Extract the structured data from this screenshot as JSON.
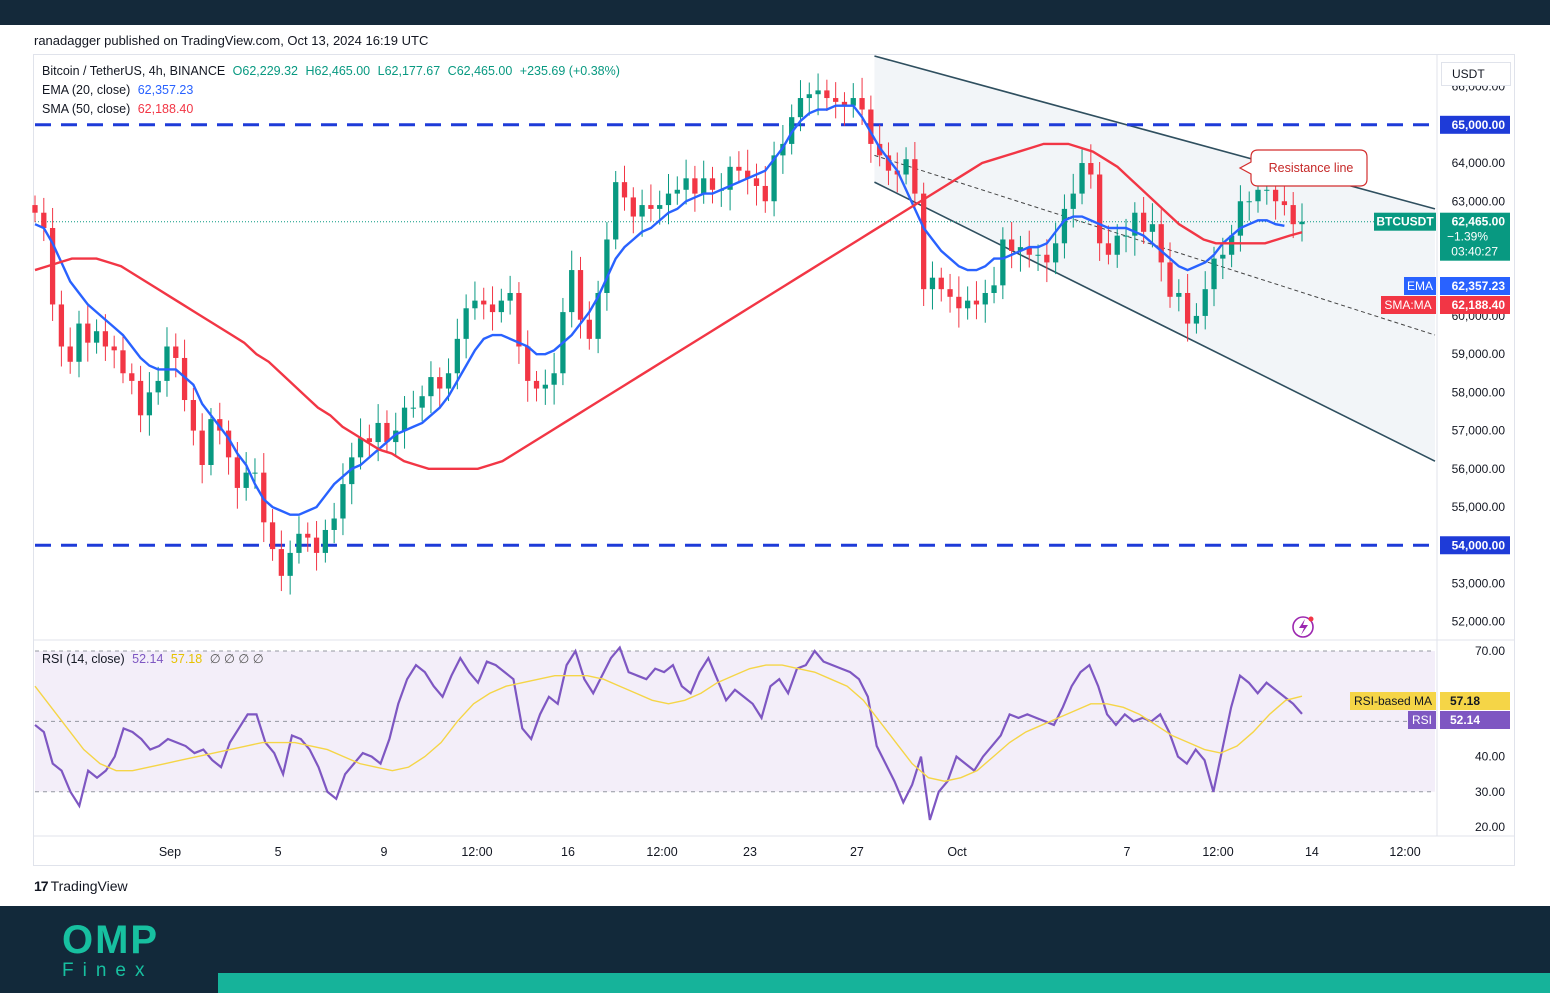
{
  "header": {
    "publisher_line": "ranadagger published on TradingView.com, Oct 13, 2024 16:19 UTC"
  },
  "legend": {
    "symbol": "Bitcoin / TetherUS, 4h, BINANCE",
    "open": "O62,229.32",
    "high": "H62,465.00",
    "low": "L62,177.67",
    "close": "C62,465.00",
    "change": "+235.69 (+0.38%)",
    "ema_label": "EMA (20, close)",
    "ema_value": "62,357.23",
    "sma_label": "SMA (50, close)",
    "sma_value": "62,188.40",
    "rsi_label": "RSI (14, close)",
    "rsi_value": "52.14",
    "rsi_ma_value": "57.18",
    "rsi_zeros": "∅ ∅ ∅ ∅"
  },
  "scale": {
    "currency": "USDT"
  },
  "colors": {
    "up": "#089981",
    "down": "#f23645",
    "ema": "#2962ff",
    "sma": "#f23645",
    "level": "#1e3bd8",
    "channel": "#2f4f5f",
    "rsi": "#7e57c2",
    "rsi_ma": "#f5d547",
    "rsi_band": "#f3eef9"
  },
  "chart_data": {
    "type": "candlestick",
    "symbol": "BTCUSDT",
    "timeframe": "4h",
    "exchange": "BINANCE",
    "x_tick_labels": [
      "Sep",
      "5",
      "9",
      "12:00",
      "16",
      "12:00",
      "23",
      "27",
      "Oct",
      "7",
      "12:00",
      "14",
      "12:00"
    ],
    "y_range": [
      51600,
      66800
    ],
    "y_tick_values": [
      66000,
      64000,
      63000,
      60000,
      59000,
      58000,
      57000,
      56000,
      55000,
      53000,
      52000
    ],
    "y_tick_labels": [
      "66,000.00",
      "64,000.00",
      "63,000.00",
      "60,000.00",
      "59,000.00",
      "58,000.00",
      "57,000.00",
      "56,000.00",
      "55,000.00",
      "53,000.00",
      "52,000.00"
    ],
    "horizontal_levels": [
      {
        "value": 65000,
        "label": "65,000.00"
      },
      {
        "value": 54000,
        "label": "54,000.00"
      }
    ],
    "last_price": {
      "symbol": "BTCUSDT",
      "value": 62465,
      "label": "62,465.00",
      "change": "−1.39%",
      "countdown": "03:40:27"
    },
    "ema": {
      "name": "EMA",
      "period": 20,
      "value": 62357.23,
      "label": "62,357.23"
    },
    "sma": {
      "name": "SMA:MA",
      "period": 50,
      "value": 62188.4,
      "label": "62,188.40"
    },
    "annotation": "Resistance line",
    "close_series": [
      62700,
      62300,
      60300,
      59200,
      58800,
      59800,
      59300,
      59600,
      59200,
      59100,
      58500,
      58300,
      57400,
      58000,
      58300,
      59200,
      58900,
      57800,
      57000,
      56100,
      57300,
      57000,
      56300,
      55500,
      55900,
      55900,
      54600,
      53900,
      53200,
      53800,
      54300,
      54200,
      53800,
      54400,
      54700,
      55600,
      56300,
      56800,
      56700,
      57200,
      56700,
      57000,
      57600,
      57600,
      57900,
      58400,
      58100,
      58500,
      59400,
      60200,
      60400,
      60300,
      60100,
      60400,
      60600,
      59200,
      58300,
      58100,
      58200,
      58500,
      60100,
      61200,
      59900,
      59400,
      60600,
      62000,
      63500,
      63100,
      62600,
      62900,
      62800,
      62900,
      63200,
      63300,
      63600,
      63200,
      63600,
      63300,
      63300,
      63900,
      63800,
      63600,
      63400,
      63000,
      64200,
      64500,
      65200,
      65700,
      65800,
      65900,
      65700,
      65600,
      65500,
      65700,
      65400,
      64500,
      64200,
      63800,
      63700,
      64100,
      63200,
      60700,
      61000,
      60700,
      60500,
      60200,
      60400,
      60300,
      60600,
      60800,
      62000,
      61700,
      61800,
      61600,
      61600,
      61400,
      61900,
      62800,
      63200,
      64000,
      63700,
      61900,
      61600,
      62100,
      62100,
      62700,
      62200,
      62400,
      61400,
      60500,
      60600,
      59800,
      60000,
      60700,
      61500,
      61600,
      62100,
      63000,
      63000,
      63300,
      63300,
      63000,
      62900,
      62400,
      62465
    ],
    "ema_series": [
      62400,
      62300,
      61900,
      61400,
      60900,
      60600,
      60300,
      60100,
      59900,
      59700,
      59500,
      59200,
      58900,
      58700,
      58600,
      58600,
      58600,
      58400,
      58200,
      57700,
      57400,
      57100,
      56800,
      56400,
      56100,
      55600,
      55200,
      55000,
      54900,
      54800,
      54800,
      54900,
      55000,
      55300,
      55600,
      55800,
      56000,
      56100,
      56300,
      56500,
      56700,
      56900,
      57000,
      57100,
      57200,
      57400,
      57600,
      57900,
      58300,
      58700,
      59100,
      59400,
      59500,
      59500,
      59400,
      59300,
      59200,
      59000,
      59000,
      59100,
      59300,
      59500,
      59800,
      60100,
      60500,
      61000,
      61500,
      61800,
      62000,
      62200,
      62300,
      62500,
      62700,
      62800,
      63000,
      63100,
      63200,
      63200,
      63300,
      63400,
      63500,
      63600,
      63700,
      63800,
      64100,
      64400,
      64800,
      65100,
      65300,
      65400,
      65400,
      65500,
      65500,
      65500,
      65200,
      64800,
      64400,
      64100,
      63800,
      63300,
      62800,
      62300,
      62000,
      61700,
      61500,
      61300,
      61200,
      61200,
      61300,
      61500,
      61500,
      61600,
      61700,
      61800,
      61800,
      61900,
      62200,
      62500,
      62600,
      62600,
      62500,
      62400,
      62300,
      62300,
      62300,
      62200,
      62100,
      61900,
      61700,
      61500,
      61300,
      61200,
      61300,
      61400,
      61600,
      61900,
      62100,
      62300,
      62400,
      62500,
      62500,
      62400,
      62357.23
    ],
    "sma_series": [
      61200,
      61300,
      61400,
      61500,
      61500,
      61500,
      61400,
      61300,
      61100,
      60900,
      60700,
      60500,
      60300,
      60100,
      59900,
      59700,
      59500,
      59300,
      59000,
      58800,
      58500,
      58200,
      57900,
      57600,
      57400,
      57100,
      56900,
      56700,
      56500,
      56400,
      56200,
      56100,
      56000,
      56000,
      56000,
      56000,
      56000,
      56100,
      56200,
      56400,
      56600,
      56800,
      57000,
      57200,
      57400,
      57600,
      57800,
      58000,
      58200,
      58400,
      58600,
      58800,
      59000,
      59200,
      59400,
      59600,
      59800,
      60000,
      60200,
      60400,
      60600,
      60800,
      61000,
      61200,
      61400,
      61600,
      61800,
      62000,
      62200,
      62400,
      62600,
      62800,
      63000,
      63200,
      63400,
      63600,
      63800,
      64000,
      64100,
      64200,
      64300,
      64400,
      64500,
      64500,
      64500,
      64400,
      64300,
      64100,
      63900,
      63600,
      63300,
      63000,
      62700,
      62400,
      62200,
      62000,
      61900,
      61900,
      61900,
      61900,
      61900,
      62000,
      62100,
      62188.4
    ],
    "sma_x_fracs": [
      0.0,
      0.01,
      0.02,
      0.03,
      0.04,
      0.05,
      0.06,
      0.07,
      0.08,
      0.09,
      0.1,
      0.11,
      0.12,
      0.13,
      0.14,
      0.15,
      0.16,
      0.17,
      0.18,
      0.19,
      0.2,
      0.21,
      0.22,
      0.23,
      0.24,
      0.25,
      0.26,
      0.27,
      0.28,
      0.29,
      0.3,
      0.31,
      0.32,
      0.33,
      0.34,
      0.35,
      0.36,
      0.37,
      0.38,
      0.39,
      0.4,
      0.41,
      0.42,
      0.43,
      0.44,
      0.45,
      0.46,
      0.47,
      0.48,
      0.49,
      0.5,
      0.51,
      0.52,
      0.53,
      0.54,
      0.55,
      0.56,
      0.57,
      0.58,
      0.59,
      0.6,
      0.61,
      0.62,
      0.63,
      0.64,
      0.65,
      0.66,
      0.67,
      0.68,
      0.69,
      0.7,
      0.71,
      0.72,
      0.73,
      0.74,
      0.75,
      0.76,
      0.77,
      0.78,
      0.79,
      0.8,
      0.81,
      0.82,
      0.83,
      0.84,
      0.85,
      0.86,
      0.87,
      0.88,
      0.89,
      0.9,
      0.91,
      0.92,
      0.93,
      0.94,
      0.95,
      0.96,
      0.97,
      0.98,
      0.99,
      1.0,
      1.0,
      1.0,
      1.0
    ],
    "channel": {
      "upper": [
        [
          0.5996,
          66800
        ],
        [
          1.0,
          62800
        ]
      ],
      "lower": [
        [
          0.5996,
          63500
        ],
        [
          1.0,
          56200
        ]
      ],
      "middle": [
        [
          0.5996,
          64200
        ],
        [
          1.0,
          59500
        ]
      ]
    },
    "rsi": {
      "range": [
        18,
        72
      ],
      "levels": [
        70,
        50,
        30
      ],
      "tick_labels": [
        "70.00",
        "40.00",
        "30.00",
        "20.00"
      ],
      "tick_values": [
        70,
        40,
        30,
        20
      ],
      "values": [
        49,
        47,
        38,
        36,
        30,
        26,
        36,
        34,
        36,
        40,
        48,
        47,
        45,
        42,
        43,
        45,
        44,
        43,
        41,
        42,
        39,
        37,
        44,
        48,
        52,
        52,
        44,
        41,
        35,
        46,
        45,
        42,
        37,
        30,
        28,
        35,
        38,
        41,
        40,
        38,
        45,
        55,
        62,
        66,
        64,
        60,
        57,
        63,
        68,
        64,
        61,
        67,
        66,
        64,
        62,
        48,
        45,
        52,
        57,
        55,
        66,
        70,
        62,
        58,
        63,
        68,
        71,
        64,
        63,
        62,
        65,
        64,
        66,
        60,
        58,
        64,
        68,
        62,
        56,
        59,
        57,
        55,
        51,
        60,
        62,
        58,
        65,
        66,
        70,
        67,
        66,
        65,
        64,
        62,
        57,
        43,
        38,
        33,
        27,
        32,
        40,
        22,
        30,
        33,
        40,
        38,
        36,
        40,
        43,
        46,
        52,
        51,
        52,
        51,
        50,
        49,
        54,
        60,
        64,
        66,
        60,
        52,
        49,
        52,
        50,
        51,
        50,
        52,
        47,
        40,
        38,
        42,
        39,
        30,
        42,
        54,
        63,
        61,
        58,
        61,
        59,
        57,
        55,
        52.14
      ],
      "ma_values": [
        60,
        54,
        48,
        42,
        38,
        36,
        36,
        37,
        38,
        39,
        40,
        41,
        42,
        43,
        44,
        44,
        44,
        43,
        42,
        40,
        38,
        37,
        36,
        37,
        40,
        44,
        50,
        55,
        58,
        60,
        61,
        62,
        63,
        63,
        63,
        62,
        60,
        58,
        56,
        55,
        56,
        58,
        61,
        63,
        65,
        66,
        66,
        65,
        64,
        62,
        60,
        56,
        50,
        44,
        38,
        34,
        33,
        34,
        36,
        40,
        44,
        47,
        49,
        51,
        53,
        55,
        55,
        54,
        52,
        49,
        46,
        44,
        42,
        41,
        43,
        47,
        52,
        56,
        57.18
      ],
      "rsi_ma_value": 57.18,
      "rsi_value": 52.14,
      "ma_label": "RSI-based MA",
      "ma_value_label": "57.18",
      "rsi_label_short": "RSI",
      "rsi_value_label": "52.14"
    }
  },
  "footer": {
    "brand_top": "OMP",
    "brand_bottom": "Finex"
  },
  "tradingview": {
    "brand": "TradingView"
  }
}
